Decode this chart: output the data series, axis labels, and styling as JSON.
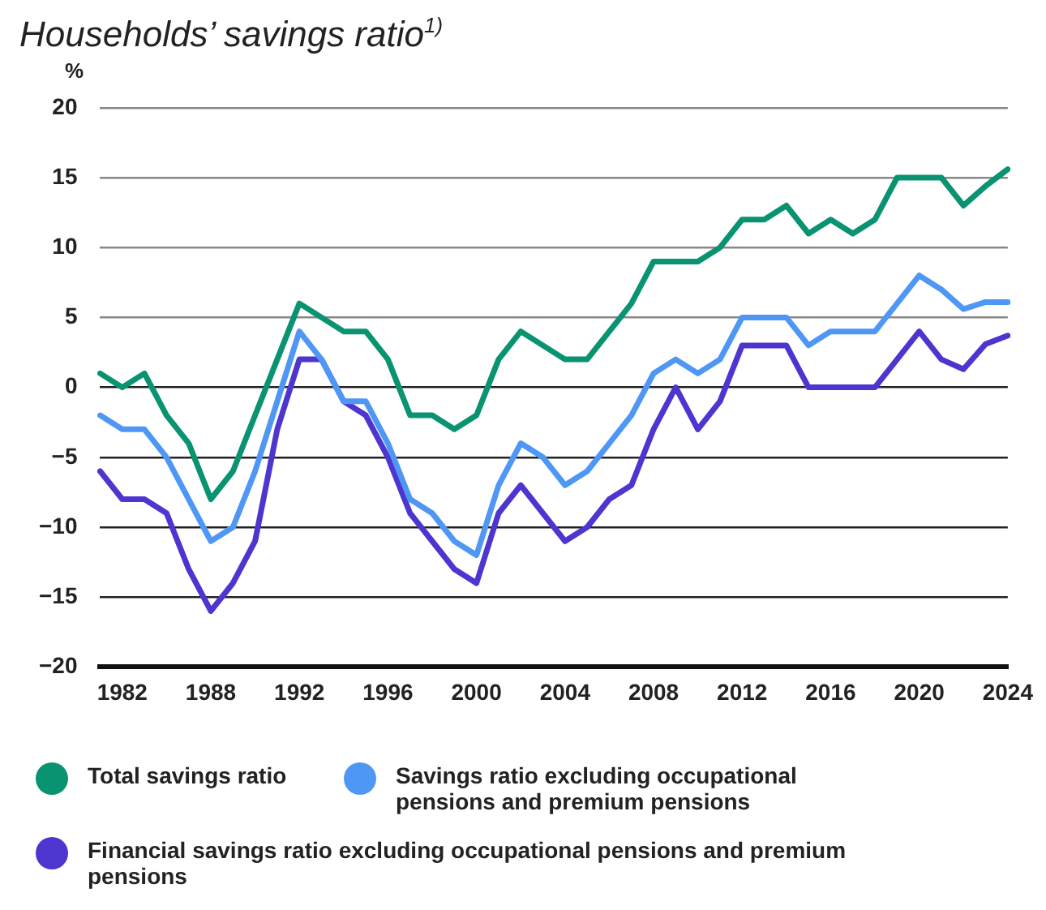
{
  "chart_data": {
    "type": "line",
    "title": "Households’ savings ratio$^{1)}$",
    "ylabel": "%",
    "categories": [
      null,
      "1982",
      null,
      null,
      null,
      "1988",
      null,
      null,
      null,
      "1992",
      null,
      null,
      null,
      "1996",
      null,
      null,
      null,
      "2000",
      null,
      null,
      null,
      "2004",
      null,
      null,
      null,
      "2008",
      null,
      null,
      null,
      "2012",
      null,
      null,
      null,
      "2016",
      null,
      null,
      null,
      "2020",
      null,
      null,
      null,
      "2024"
    ],
    "series": [
      {
        "name": "Total savings ratio",
        "color": "#0a9370",
        "values": [
          1,
          0,
          1,
          -2,
          -4,
          -8,
          -6,
          -2,
          2,
          6,
          5,
          4,
          4,
          2,
          -2,
          -2,
          -3,
          -2,
          2,
          4,
          3,
          2,
          2,
          4,
          6,
          9,
          9,
          9,
          10,
          12,
          12,
          13,
          11,
          12,
          11,
          12,
          15,
          15,
          15,
          13,
          14.4,
          15.6
        ]
      },
      {
        "name": "Savings ratio excluding occupational pensions and premium pensions",
        "color": "#4f97f5",
        "values": [
          -2,
          -3,
          -3,
          -5,
          -8,
          -11,
          -10,
          -6,
          -1,
          4,
          2,
          -1,
          -1,
          -4,
          -8,
          -9,
          -11,
          -12,
          -7,
          -4,
          -5,
          -7,
          -6,
          -4,
          -2,
          1,
          2,
          1,
          2,
          5,
          5,
          5,
          3,
          4,
          4,
          4,
          6,
          8,
          7,
          5.6,
          6.1,
          6.1
        ]
      },
      {
        "name": "Financial savings ratio excluding occupational pensions and premium pensions",
        "color": "#4d35d0",
        "values": [
          -6,
          -8,
          -8,
          -9,
          -13,
          -16,
          -14,
          -11,
          -3,
          2,
          2,
          -1,
          -2,
          -5,
          -9,
          -11,
          -13,
          -14,
          -9,
          -7,
          -9,
          -11,
          -10,
          -8,
          -7,
          -3,
          0,
          -3,
          -1,
          3,
          3,
          3,
          0,
          0,
          0,
          0,
          2,
          4,
          2,
          1.3,
          3.1,
          3.7
        ]
      }
    ],
    "ylim": [
      -20,
      20
    ],
    "yticks": [
      -20,
      -15,
      -10,
      -5,
      0,
      5,
      10,
      15,
      20
    ],
    "grid": "y",
    "legend": "bottom",
    "marker": "none",
    "line_style": "solid"
  }
}
